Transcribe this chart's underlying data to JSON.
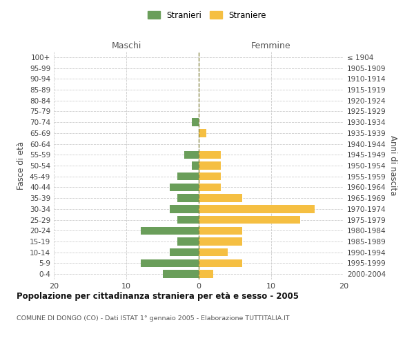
{
  "age_groups": [
    "0-4",
    "5-9",
    "10-14",
    "15-19",
    "20-24",
    "25-29",
    "30-34",
    "35-39",
    "40-44",
    "45-49",
    "50-54",
    "55-59",
    "60-64",
    "65-69",
    "70-74",
    "75-79",
    "80-84",
    "85-89",
    "90-94",
    "95-99",
    "100+"
  ],
  "birth_years": [
    "2000-2004",
    "1995-1999",
    "1990-1994",
    "1985-1989",
    "1980-1984",
    "1975-1979",
    "1970-1974",
    "1965-1969",
    "1960-1964",
    "1955-1959",
    "1950-1954",
    "1945-1949",
    "1940-1944",
    "1935-1939",
    "1930-1934",
    "1925-1929",
    "1920-1924",
    "1915-1919",
    "1910-1914",
    "1905-1909",
    "≤ 1904"
  ],
  "males": [
    5,
    8,
    4,
    3,
    8,
    3,
    4,
    3,
    4,
    3,
    1,
    2,
    0,
    0,
    1,
    0,
    0,
    0,
    0,
    0,
    0
  ],
  "females": [
    2,
    6,
    4,
    6,
    6,
    14,
    16,
    6,
    3,
    3,
    3,
    3,
    0,
    1,
    0,
    0,
    0,
    0,
    0,
    0,
    0
  ],
  "male_color": "#6a9e5a",
  "female_color": "#f5bf42",
  "title": "Popolazione per cittadinanza straniera per età e sesso - 2005",
  "subtitle": "COMUNE DI DONGO (CO) - Dati ISTAT 1° gennaio 2005 - Elaborazione TUTTITALIA.IT",
  "header_left": "Maschi",
  "header_right": "Femmine",
  "ylabel_left": "Fasce di età",
  "ylabel_right": "Anni di nascita",
  "legend_male": "Stranieri",
  "legend_female": "Straniere",
  "xlim": 20,
  "background_color": "#ffffff",
  "grid_color": "#cccccc"
}
